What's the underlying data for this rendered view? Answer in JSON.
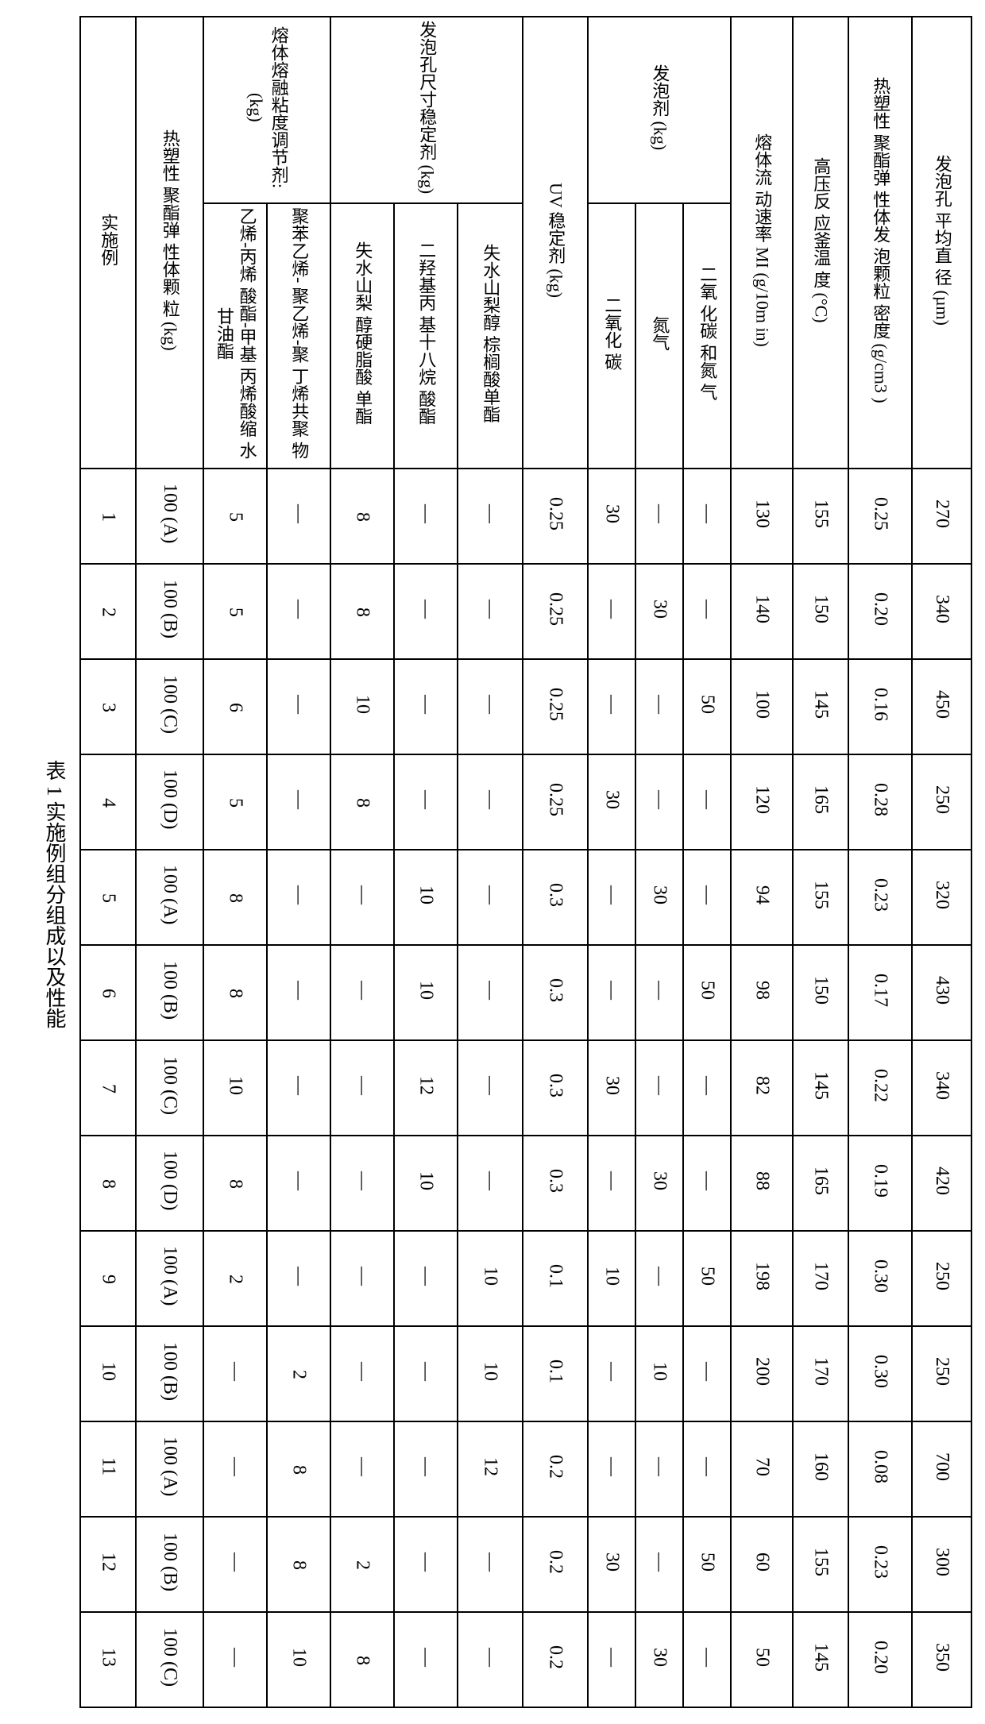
{
  "caption": "表 1 实施例组分组成以及性能",
  "headers": {
    "col_example": "实施例",
    "col_resin": "热塑性\n聚酯弹\n性体颗\n粒 (kg)",
    "col_melt_group": "熔体熔融粘度调节剂:\n(kg)",
    "col_melt_a": "乙烯-丙烯\n酸酯-甲基\n丙烯酸缩\n水甘油酯",
    "col_melt_b": "聚苯乙烯-\n聚乙烯-聚\n丁烯共聚\n物",
    "col_foam_stab_group": "发泡孔尺寸稳定剂\n(kg)",
    "col_foam_a": "失水山梨\n醇硬脂酸\n单酯",
    "col_foam_b": "二羟基丙\n基十八烷\n酸酯",
    "col_foam_c": "失水山梨醇\n棕榈酸单酯",
    "col_uv": "UV 稳定剂\n(kg)",
    "col_blow_group": "发泡剂 (kg)",
    "col_blow_a": "二氧化\n碳",
    "col_blow_b": "氮气",
    "col_blow_c": "二氧\n化碳\n和氮\n气",
    "col_mfr": "熔体流\n动速率\nMI\n(g/10m\nin)",
    "col_temp": "高压反\n应釜温\n度\n(°C)",
    "col_density": "热塑性\n聚酯弹\n性体发\n泡颗粒\n密度\n(g/cm3\n)",
    "col_pore": "发泡孔\n平均直\n径\n(µm)"
  },
  "rows": [
    {
      "ex": "1",
      "resin": "100 (A)",
      "m1": "5",
      "m2": "—",
      "f1": "8",
      "f2": "—",
      "f3": "—",
      "uv": "0.25",
      "b1": "30",
      "b2": "—",
      "b3": "—",
      "mfr": "130",
      "t": "155",
      "d": "0.25",
      "p": "270"
    },
    {
      "ex": "2",
      "resin": "100 (B)",
      "m1": "5",
      "m2": "—",
      "f1": "8",
      "f2": "—",
      "f3": "—",
      "uv": "0.25",
      "b1": "—",
      "b2": "30",
      "b3": "—",
      "mfr": "140",
      "t": "150",
      "d": "0.20",
      "p": "340"
    },
    {
      "ex": "3",
      "resin": "100 (C)",
      "m1": "6",
      "m2": "—",
      "f1": "10",
      "f2": "—",
      "f3": "—",
      "uv": "0.25",
      "b1": "—",
      "b2": "—",
      "b3": "50",
      "mfr": "100",
      "t": "145",
      "d": "0.16",
      "p": "450"
    },
    {
      "ex": "4",
      "resin": "100 (D)",
      "m1": "5",
      "m2": "—",
      "f1": "8",
      "f2": "—",
      "f3": "—",
      "uv": "0.25",
      "b1": "30",
      "b2": "—",
      "b3": "—",
      "mfr": "120",
      "t": "165",
      "d": "0.28",
      "p": "250"
    },
    {
      "ex": "5",
      "resin": "100 (A)",
      "m1": "8",
      "m2": "—",
      "f1": "—",
      "f2": "10",
      "f3": "—",
      "uv": "0.3",
      "b1": "—",
      "b2": "30",
      "b3": "—",
      "mfr": "94",
      "t": "155",
      "d": "0.23",
      "p": "320"
    },
    {
      "ex": "6",
      "resin": "100 (B)",
      "m1": "8",
      "m2": "—",
      "f1": "—",
      "f2": "10",
      "f3": "—",
      "uv": "0.3",
      "b1": "—",
      "b2": "—",
      "b3": "50",
      "mfr": "98",
      "t": "150",
      "d": "0.17",
      "p": "430"
    },
    {
      "ex": "7",
      "resin": "100 (C)",
      "m1": "10",
      "m2": "—",
      "f1": "—",
      "f2": "12",
      "f3": "—",
      "uv": "0.3",
      "b1": "30",
      "b2": "—",
      "b3": "—",
      "mfr": "82",
      "t": "145",
      "d": "0.22",
      "p": "340"
    },
    {
      "ex": "8",
      "resin": "100 (D)",
      "m1": "8",
      "m2": "—",
      "f1": "—",
      "f2": "10",
      "f3": "—",
      "uv": "0.3",
      "b1": "—",
      "b2": "30",
      "b3": "—",
      "mfr": "88",
      "t": "165",
      "d": "0.19",
      "p": "420"
    },
    {
      "ex": "9",
      "resin": "100 (A)",
      "m1": "2",
      "m2": "—",
      "f1": "—",
      "f2": "—",
      "f3": "10",
      "uv": "0.1",
      "b1": "10",
      "b2": "—",
      "b3": "50",
      "mfr": "198",
      "t": "170",
      "d": "0.30",
      "p": "250"
    },
    {
      "ex": "10",
      "resin": "100 (B)",
      "m1": "—",
      "m2": "2",
      "f1": "—",
      "f2": "—",
      "f3": "10",
      "uv": "0.1",
      "b1": "—",
      "b2": "10",
      "b3": "—",
      "mfr": "200",
      "t": "170",
      "d": "0.30",
      "p": "250"
    },
    {
      "ex": "11",
      "resin": "100 (A)",
      "m1": "—",
      "m2": "8",
      "f1": "—",
      "f2": "—",
      "f3": "12",
      "uv": "0.2",
      "b1": "—",
      "b2": "—",
      "b3": "—",
      "mfr": "70",
      "t": "160",
      "d": "0.08",
      "p": "700"
    },
    {
      "ex": "12",
      "resin": "100 (B)",
      "m1": "—",
      "m2": "8",
      "f1": "2",
      "f2": "—",
      "f3": "—",
      "uv": "0.2",
      "b1": "30",
      "b2": "—",
      "b3": "50",
      "mfr": "60",
      "t": "155",
      "d": "0.23",
      "p": "300"
    },
    {
      "ex": "13",
      "resin": "100 (C)",
      "m1": "—",
      "m2": "10",
      "f1": "8",
      "f2": "—",
      "f3": "—",
      "uv": "0.2",
      "b1": "—",
      "b2": "30",
      "b3": "—",
      "mfr": "50",
      "t": "145",
      "d": "0.20",
      "p": "350"
    }
  ]
}
